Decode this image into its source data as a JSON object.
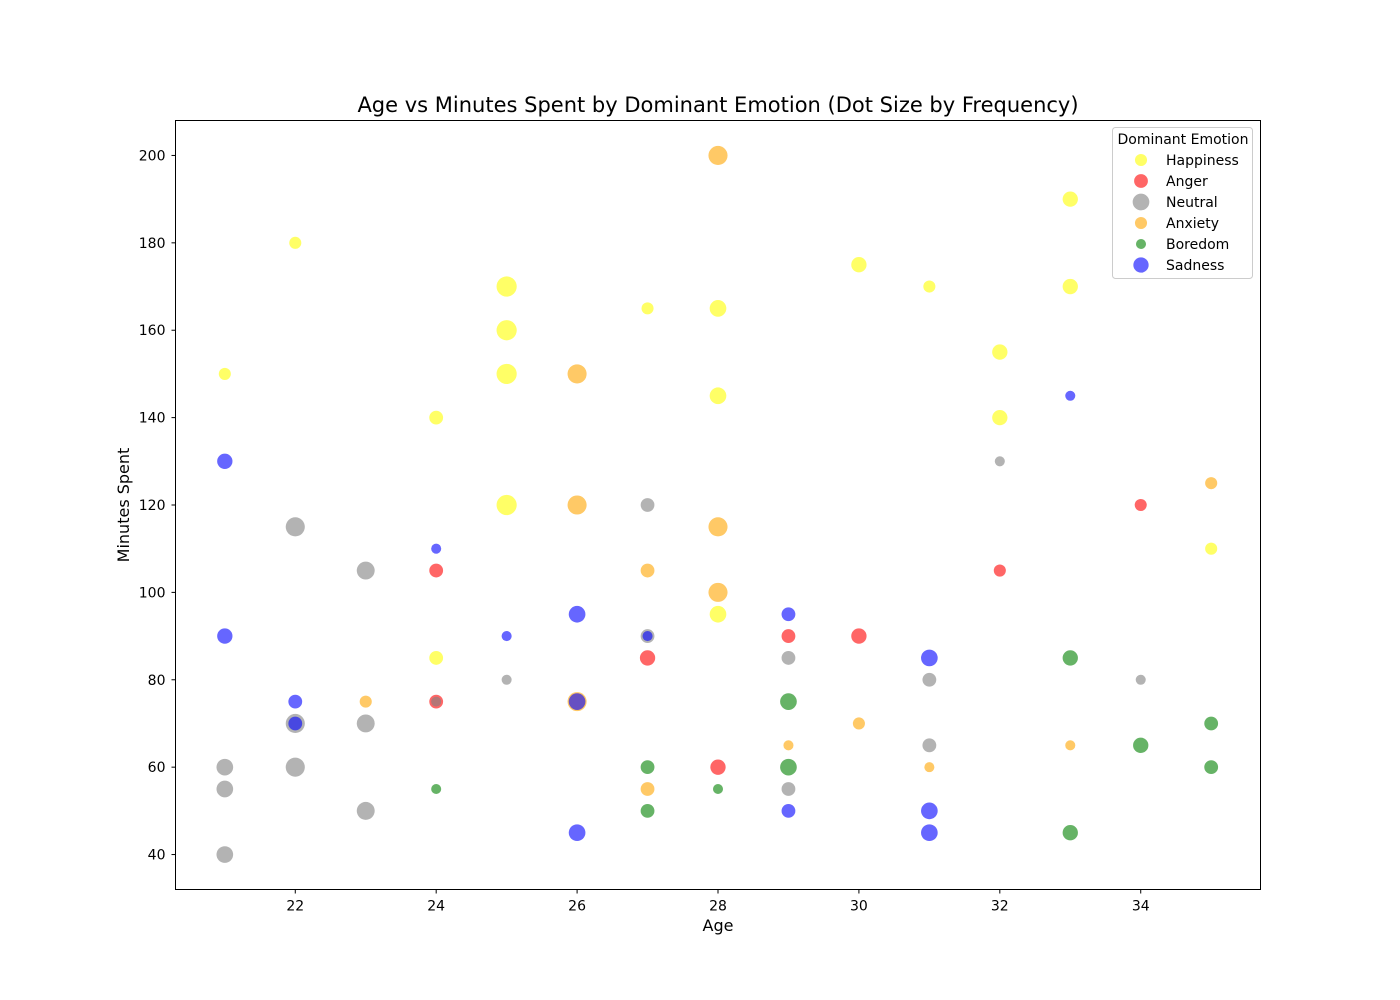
{
  "chart_data": {
    "type": "scatter",
    "title": "Age vs Minutes Spent by Dominant Emotion (Dot Size by Frequency)",
    "xlabel": "Age",
    "ylabel": "Minutes Spent",
    "xlim": [
      20.3,
      35.7
    ],
    "ylim": [
      32,
      208
    ],
    "xticks": [
      22,
      24,
      26,
      28,
      30,
      32,
      34
    ],
    "yticks": [
      40,
      60,
      80,
      100,
      120,
      140,
      160,
      180,
      200
    ],
    "grid": false,
    "legend": {
      "title": "Dominant Emotion",
      "placement": "top-right"
    },
    "size_encoding": "Frequency",
    "series": [
      {
        "name": "Happiness",
        "color": "#ffff00",
        "points": [
          {
            "x": 21,
            "y": 150,
            "f": 3
          },
          {
            "x": 22,
            "y": 180,
            "f": 3
          },
          {
            "x": 24,
            "y": 140,
            "f": 4
          },
          {
            "x": 24,
            "y": 85,
            "f": 4
          },
          {
            "x": 25,
            "y": 170,
            "f": 9
          },
          {
            "x": 25,
            "y": 160,
            "f": 9
          },
          {
            "x": 25,
            "y": 150,
            "f": 9
          },
          {
            "x": 25,
            "y": 120,
            "f": 9
          },
          {
            "x": 27,
            "y": 165,
            "f": 3
          },
          {
            "x": 28,
            "y": 165,
            "f": 6
          },
          {
            "x": 28,
            "y": 145,
            "f": 6
          },
          {
            "x": 28,
            "y": 95,
            "f": 6
          },
          {
            "x": 30,
            "y": 175,
            "f": 5
          },
          {
            "x": 31,
            "y": 170,
            "f": 3
          },
          {
            "x": 32,
            "y": 155,
            "f": 5
          },
          {
            "x": 32,
            "y": 140,
            "f": 5
          },
          {
            "x": 33,
            "y": 190,
            "f": 5
          },
          {
            "x": 33,
            "y": 170,
            "f": 5
          },
          {
            "x": 35,
            "y": 110,
            "f": 3
          }
        ]
      },
      {
        "name": "Anger",
        "color": "#ff0000",
        "points": [
          {
            "x": 24,
            "y": 105,
            "f": 4
          },
          {
            "x": 24,
            "y": 75,
            "f": 4
          },
          {
            "x": 27,
            "y": 85,
            "f": 5
          },
          {
            "x": 28,
            "y": 60,
            "f": 5
          },
          {
            "x": 29,
            "y": 90,
            "f": 4
          },
          {
            "x": 30,
            "y": 90,
            "f": 5
          },
          {
            "x": 32,
            "y": 105,
            "f": 3
          },
          {
            "x": 34,
            "y": 120,
            "f": 3
          }
        ]
      },
      {
        "name": "Neutral",
        "color": "#808080",
        "points": [
          {
            "x": 21,
            "y": 60,
            "f": 6
          },
          {
            "x": 21,
            "y": 55,
            "f": 6
          },
          {
            "x": 21,
            "y": 40,
            "f": 6
          },
          {
            "x": 22,
            "y": 115,
            "f": 8
          },
          {
            "x": 22,
            "y": 70,
            "f": 8
          },
          {
            "x": 22,
            "y": 60,
            "f": 8
          },
          {
            "x": 23,
            "y": 105,
            "f": 7
          },
          {
            "x": 23,
            "y": 70,
            "f": 7
          },
          {
            "x": 23,
            "y": 50,
            "f": 7
          },
          {
            "x": 24,
            "y": 75,
            "f": 2
          },
          {
            "x": 25,
            "y": 80,
            "f": 2
          },
          {
            "x": 27,
            "y": 120,
            "f": 4
          },
          {
            "x": 27,
            "y": 90,
            "f": 4
          },
          {
            "x": 29,
            "y": 85,
            "f": 4
          },
          {
            "x": 29,
            "y": 55,
            "f": 4
          },
          {
            "x": 31,
            "y": 80,
            "f": 4
          },
          {
            "x": 31,
            "y": 65,
            "f": 4
          },
          {
            "x": 32,
            "y": 130,
            "f": 2
          },
          {
            "x": 34,
            "y": 80,
            "f": 2
          }
        ]
      },
      {
        "name": "Anxiety",
        "color": "#ffa500",
        "points": [
          {
            "x": 23,
            "y": 75,
            "f": 3
          },
          {
            "x": 26,
            "y": 150,
            "f": 8
          },
          {
            "x": 26,
            "y": 120,
            "f": 8
          },
          {
            "x": 26,
            "y": 75,
            "f": 8
          },
          {
            "x": 27,
            "y": 105,
            "f": 4
          },
          {
            "x": 27,
            "y": 55,
            "f": 4
          },
          {
            "x": 28,
            "y": 200,
            "f": 8
          },
          {
            "x": 28,
            "y": 115,
            "f": 8
          },
          {
            "x": 28,
            "y": 100,
            "f": 8
          },
          {
            "x": 29,
            "y": 65,
            "f": 2
          },
          {
            "x": 30,
            "y": 70,
            "f": 3
          },
          {
            "x": 31,
            "y": 60,
            "f": 2
          },
          {
            "x": 33,
            "y": 65,
            "f": 2
          },
          {
            "x": 35,
            "y": 125,
            "f": 3
          }
        ]
      },
      {
        "name": "Boredom",
        "color": "#008000",
        "points": [
          {
            "x": 24,
            "y": 55,
            "f": 2
          },
          {
            "x": 27,
            "y": 60,
            "f": 4
          },
          {
            "x": 27,
            "y": 50,
            "f": 4
          },
          {
            "x": 28,
            "y": 55,
            "f": 2
          },
          {
            "x": 29,
            "y": 75,
            "f": 6
          },
          {
            "x": 29,
            "y": 60,
            "f": 6
          },
          {
            "x": 33,
            "y": 85,
            "f": 5
          },
          {
            "x": 33,
            "y": 45,
            "f": 5
          },
          {
            "x": 34,
            "y": 65,
            "f": 5
          },
          {
            "x": 35,
            "y": 70,
            "f": 4
          },
          {
            "x": 35,
            "y": 60,
            "f": 4
          }
        ]
      },
      {
        "name": "Sadness",
        "color": "#0000ff",
        "points": [
          {
            "x": 21,
            "y": 130,
            "f": 5
          },
          {
            "x": 21,
            "y": 90,
            "f": 5
          },
          {
            "x": 22,
            "y": 75,
            "f": 4
          },
          {
            "x": 22,
            "y": 70,
            "f": 4
          },
          {
            "x": 24,
            "y": 110,
            "f": 2
          },
          {
            "x": 25,
            "y": 90,
            "f": 2
          },
          {
            "x": 26,
            "y": 95,
            "f": 6
          },
          {
            "x": 26,
            "y": 75,
            "f": 6
          },
          {
            "x": 26,
            "y": 45,
            "f": 6
          },
          {
            "x": 27,
            "y": 90,
            "f": 2
          },
          {
            "x": 29,
            "y": 95,
            "f": 4
          },
          {
            "x": 29,
            "y": 50,
            "f": 4
          },
          {
            "x": 31,
            "y": 85,
            "f": 6
          },
          {
            "x": 31,
            "y": 50,
            "f": 6
          },
          {
            "x": 31,
            "y": 45,
            "f": 6
          },
          {
            "x": 33,
            "y": 145,
            "f": 2
          }
        ]
      }
    ]
  }
}
